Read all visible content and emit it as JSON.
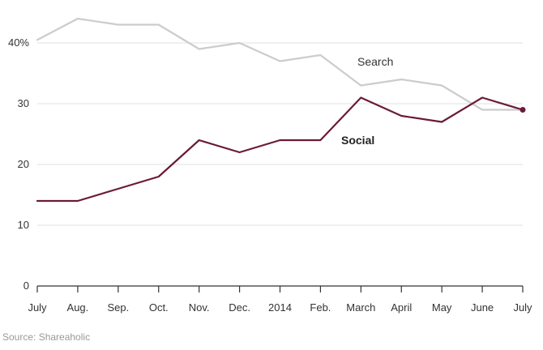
{
  "chart_data": {
    "type": "line",
    "categories": [
      "July",
      "Aug.",
      "Sep.",
      "Oct.",
      "Nov.",
      "Dec.",
      "2014",
      "Feb.",
      "March",
      "April",
      "May",
      "June",
      "July"
    ],
    "series": [
      {
        "name": "Search",
        "values": [
          40.5,
          44,
          43,
          43,
          39,
          40,
          37,
          38,
          33,
          34,
          33,
          29,
          29
        ],
        "color": "#cccccc",
        "label_weight": "normal",
        "label_color": "#333333"
      },
      {
        "name": "Social",
        "values": [
          14,
          14,
          16,
          18,
          24,
          22,
          24,
          24,
          31,
          28,
          27,
          31,
          29
        ],
        "color": "#6b1a3a",
        "label_weight": "bold",
        "label_color": "#222222",
        "end_marker": true
      }
    ],
    "yticks": [
      {
        "value": 0,
        "label": "0"
      },
      {
        "value": 10,
        "label": "10"
      },
      {
        "value": 20,
        "label": "20"
      },
      {
        "value": 30,
        "label": "30"
      },
      {
        "value": 40,
        "label": "40%"
      }
    ],
    "ylim": [
      0,
      45
    ],
    "grid": true,
    "gridline_color": "#e2e2e2",
    "axis_color": "#333333",
    "source": "Source: Shareaholic"
  }
}
